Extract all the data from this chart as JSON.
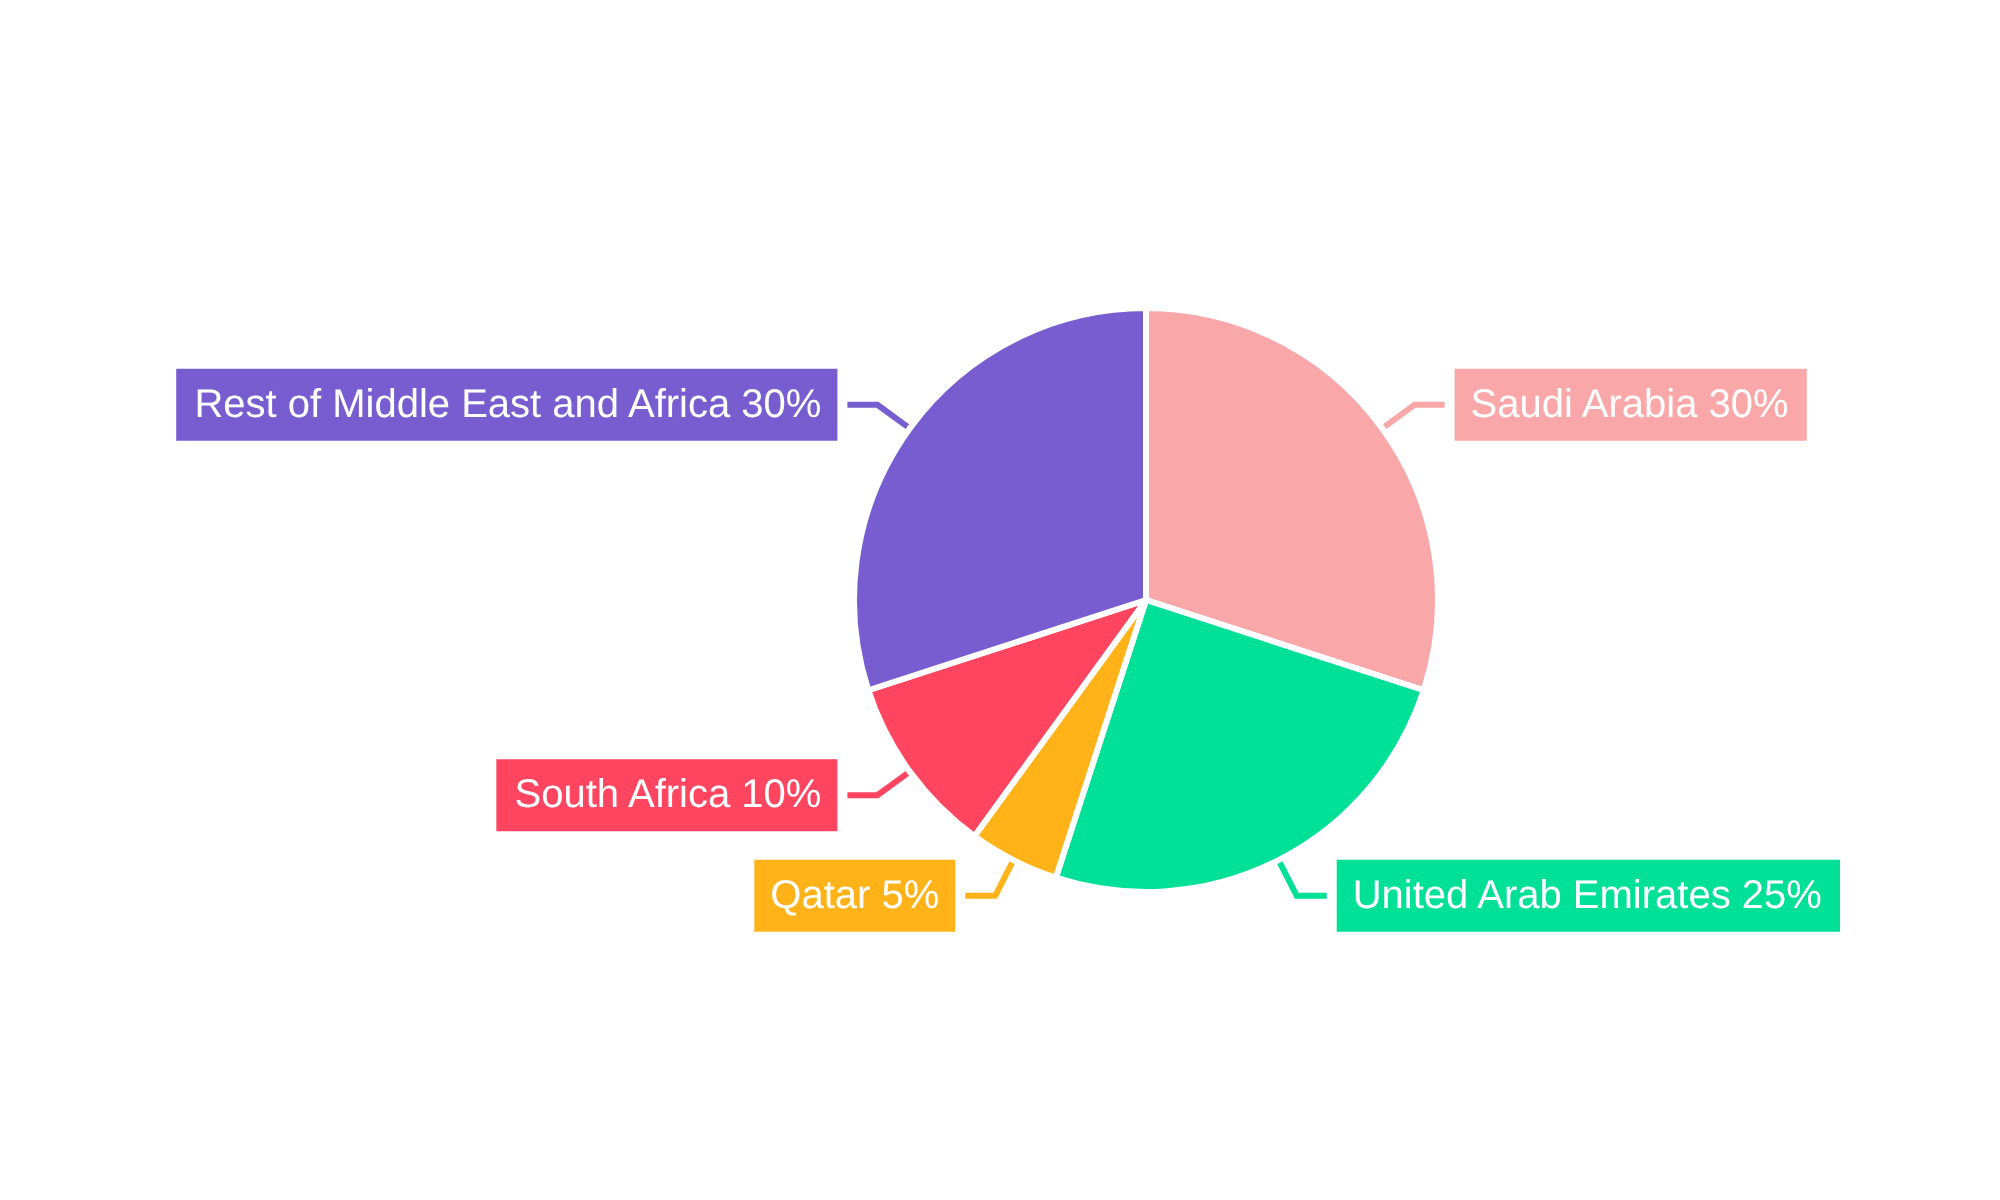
{
  "chart_data": {
    "type": "pie",
    "categories": [
      "Saudi Arabia",
      "United Arab Emirates",
      "Qatar",
      "South Africa",
      "Rest of Middle East and Africa"
    ],
    "values": [
      30,
      25,
      5,
      10,
      30
    ],
    "colors": [
      "#f9a7a8",
      "#00e096",
      "#ffb319",
      "#ff4560",
      "#775dd0"
    ],
    "value_labels": [
      "30%",
      "25%",
      "5%",
      "10%",
      "30%"
    ],
    "legend": false
  }
}
